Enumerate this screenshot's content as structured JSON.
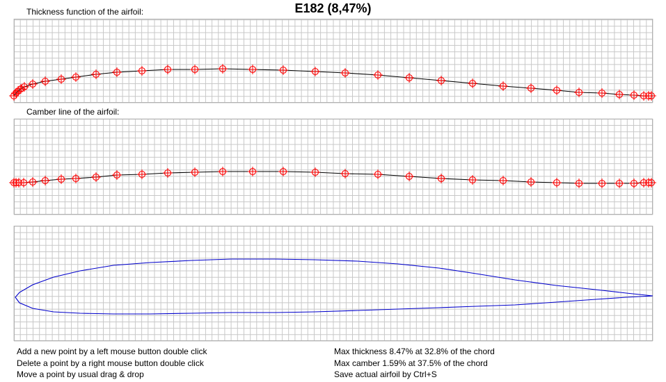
{
  "title": "E182 (8,47%)",
  "panels": {
    "thickness_label": "Thickness function of the airfoil:",
    "camber_label": "Camber line of the airfoil:"
  },
  "instructions": [
    "Add a new point by a left mouse button double click",
    "Delete a point by a right mouse button double click",
    "Move a point by usual drag & drop"
  ],
  "stats": [
    "Max thickness 8.47% at 32.8% of the chord",
    "Max camber 1.59% at 37.5% of the chord",
    "Save actual airfoil by Ctrl+S"
  ],
  "colors": {
    "grid": "#c8c8c8",
    "curve": "#000000",
    "control_point": "#ff0000",
    "airfoil": "#0000cc"
  },
  "icons": {
    "control_point": "crosshair-circle-icon"
  }
}
